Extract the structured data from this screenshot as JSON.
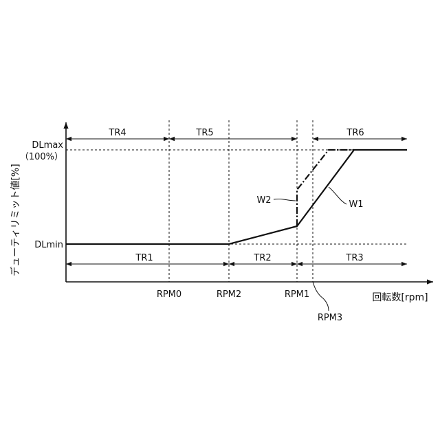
{
  "chart_data": {
    "type": "line",
    "ylabel": "デューティリミット値[%]",
    "xlabel": "回転数[rpm]",
    "y_ticks": [
      {
        "name": "dlmax",
        "lines": [
          "DLmax",
          "（100%）"
        ]
      },
      {
        "name": "dlmin",
        "lines": [
          "DLmin"
        ]
      }
    ],
    "x_ticks": [
      {
        "name": "rpm0",
        "label": "RPM0"
      },
      {
        "name": "rpm2",
        "label": "RPM2"
      },
      {
        "name": "rpm1",
        "label": "RPM1"
      },
      {
        "name": "rpm3",
        "label": "RPM3"
      }
    ],
    "ranges_top": [
      {
        "name": "tr4",
        "label": "TR4",
        "from": "start",
        "to": "rpm0"
      },
      {
        "name": "tr5",
        "label": "TR5",
        "from": "rpm0",
        "to": "rpm1"
      },
      {
        "name": "tr6",
        "label": "TR6",
        "from": "rpm3",
        "to": "end"
      }
    ],
    "ranges_bottom": [
      {
        "name": "tr1",
        "label": "TR1",
        "from": "start",
        "to": "rpm2"
      },
      {
        "name": "tr2",
        "label": "TR2",
        "from": "rpm2",
        "to": "rpm1"
      },
      {
        "name": "tr3",
        "label": "TR3",
        "from": "rpm1",
        "to": "end"
      }
    ],
    "series": [
      {
        "name": "W1",
        "style": "solid",
        "points": [
          [
            "start",
            "DLmin"
          ],
          [
            "RPM2",
            "DLmin"
          ],
          [
            "RPM1",
            0.3
          ],
          [
            "RPM3",
            0.47
          ],
          [
            "~",
            "DLmax"
          ],
          [
            "end",
            "DLmax"
          ]
        ]
      },
      {
        "name": "W2",
        "style": "dash-dot",
        "points": [
          [
            "RPM1",
            0.3
          ],
          [
            "RPM1",
            0.6
          ],
          [
            "RPM3",
            0.9
          ],
          [
            "~",
            "DLmax"
          ]
        ]
      }
    ],
    "grid": false,
    "colors": {
      "line": "#111111",
      "background": "#ffffff"
    }
  }
}
